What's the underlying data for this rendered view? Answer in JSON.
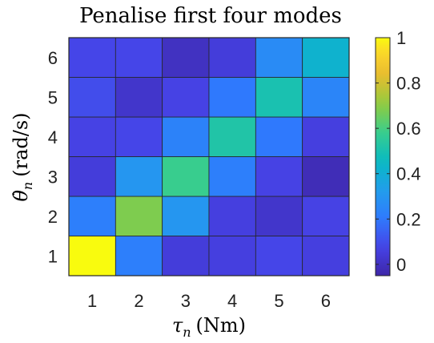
{
  "chart_data": {
    "type": "heatmap",
    "title": "Penalise first four modes",
    "xlabel_symbol": "τ",
    "xlabel_sub": "n",
    "xlabel_unit": "(Nm)",
    "ylabel_symbol": "θ̇",
    "ylabel_sub": "n",
    "ylabel_unit": "(rad/s)",
    "x_categories": [
      "1",
      "2",
      "3",
      "4",
      "5",
      "6"
    ],
    "y_categories": [
      "1",
      "2",
      "3",
      "4",
      "5",
      "6"
    ],
    "values": [
      [
        1.0,
        0.22,
        0.05,
        0.06,
        0.08,
        0.06
      ],
      [
        0.22,
        0.68,
        0.3,
        0.06,
        0.02,
        0.07
      ],
      [
        0.05,
        0.3,
        0.58,
        0.22,
        0.07,
        -0.02
      ],
      [
        0.07,
        0.08,
        0.23,
        0.52,
        0.2,
        0.06
      ],
      [
        0.1,
        0.02,
        0.07,
        0.2,
        0.5,
        0.24
      ],
      [
        0.08,
        0.08,
        0.0,
        0.05,
        0.26,
        0.42
      ]
    ],
    "clim": [
      -0.05,
      1.0
    ],
    "colormap": "parula",
    "colorbar_ticks": [
      "1",
      "0.8",
      "0.6",
      "0.4",
      "0.2",
      "0"
    ],
    "colorbar_tick_values": [
      1,
      0.8,
      0.6,
      0.4,
      0.2,
      0
    ]
  }
}
